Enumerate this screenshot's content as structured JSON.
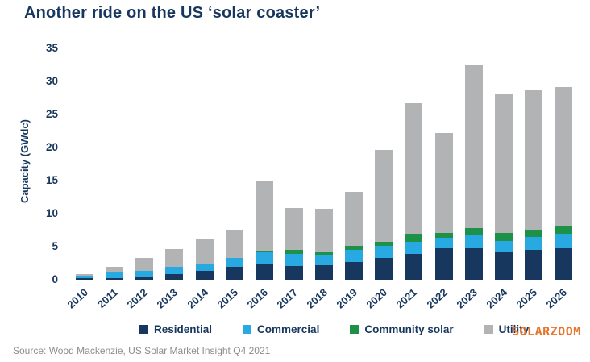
{
  "title": "Another ride on the US ‘solar coaster’",
  "source": "Source: Wood Mackenzie, US Solar Market Insight Q4 2021",
  "watermark": "SOLARZOOM",
  "colors": {
    "text_navy": "#17375e",
    "residential": "#17375e",
    "commercial": "#29a9e1",
    "community_solar": "#1e9148",
    "utility": "#b1b3b5",
    "source_text": "#8d8d8d",
    "watermark_orange": "#e8742a"
  },
  "chart_data": {
    "type": "bar",
    "stacked": true,
    "title": "Another ride on the US ‘solar coaster’",
    "xlabel": "",
    "ylabel": "Capacity (GWdc)",
    "ylim": [
      0,
      35
    ],
    "yticks": [
      0,
      5,
      10,
      15,
      20,
      25,
      30,
      35
    ],
    "grid": false,
    "legend_position": "bottom",
    "categories": [
      "2010",
      "2011",
      "2012",
      "2013",
      "2014",
      "2015",
      "2016",
      "2017",
      "2018",
      "2019",
      "2020",
      "2021",
      "2022",
      "2023",
      "2024",
      "2025",
      "2026"
    ],
    "series": [
      {
        "name": "Residential",
        "color": "#17375e",
        "values": [
          0.25,
          0.3,
          0.4,
          0.9,
          1.3,
          1.9,
          2.4,
          2.1,
          2.2,
          2.7,
          3.3,
          3.9,
          4.8,
          4.9,
          4.3,
          4.5,
          4.8
        ]
      },
      {
        "name": "Commercial",
        "color": "#29a9e1",
        "values": [
          0.35,
          0.9,
          1.0,
          1.1,
          1.0,
          1.4,
          1.8,
          1.8,
          1.6,
          1.8,
          1.8,
          1.8,
          1.5,
          1.8,
          1.6,
          2.0,
          2.2
        ]
      },
      {
        "name": "Community solar",
        "color": "#1e9148",
        "values": [
          0,
          0,
          0,
          0,
          0,
          0,
          0.25,
          0.6,
          0.5,
          0.6,
          0.6,
          1.2,
          0.8,
          1.1,
          1.2,
          1.1,
          1.2
        ]
      },
      {
        "name": "Utility",
        "color": "#b1b3b5",
        "values": [
          0.25,
          0.7,
          1.9,
          2.6,
          3.9,
          4.3,
          10.6,
          6.4,
          6.4,
          8.2,
          13.9,
          19.8,
          15.1,
          24.6,
          20.9,
          21.1,
          21.0
        ]
      }
    ],
    "totals": [
      0.85,
      1.9,
      3.3,
      4.6,
      6.2,
      7.6,
      15.05,
      10.9,
      10.7,
      13.3,
      19.6,
      26.7,
      22.2,
      32.4,
      28.0,
      28.7,
      29.2
    ]
  }
}
